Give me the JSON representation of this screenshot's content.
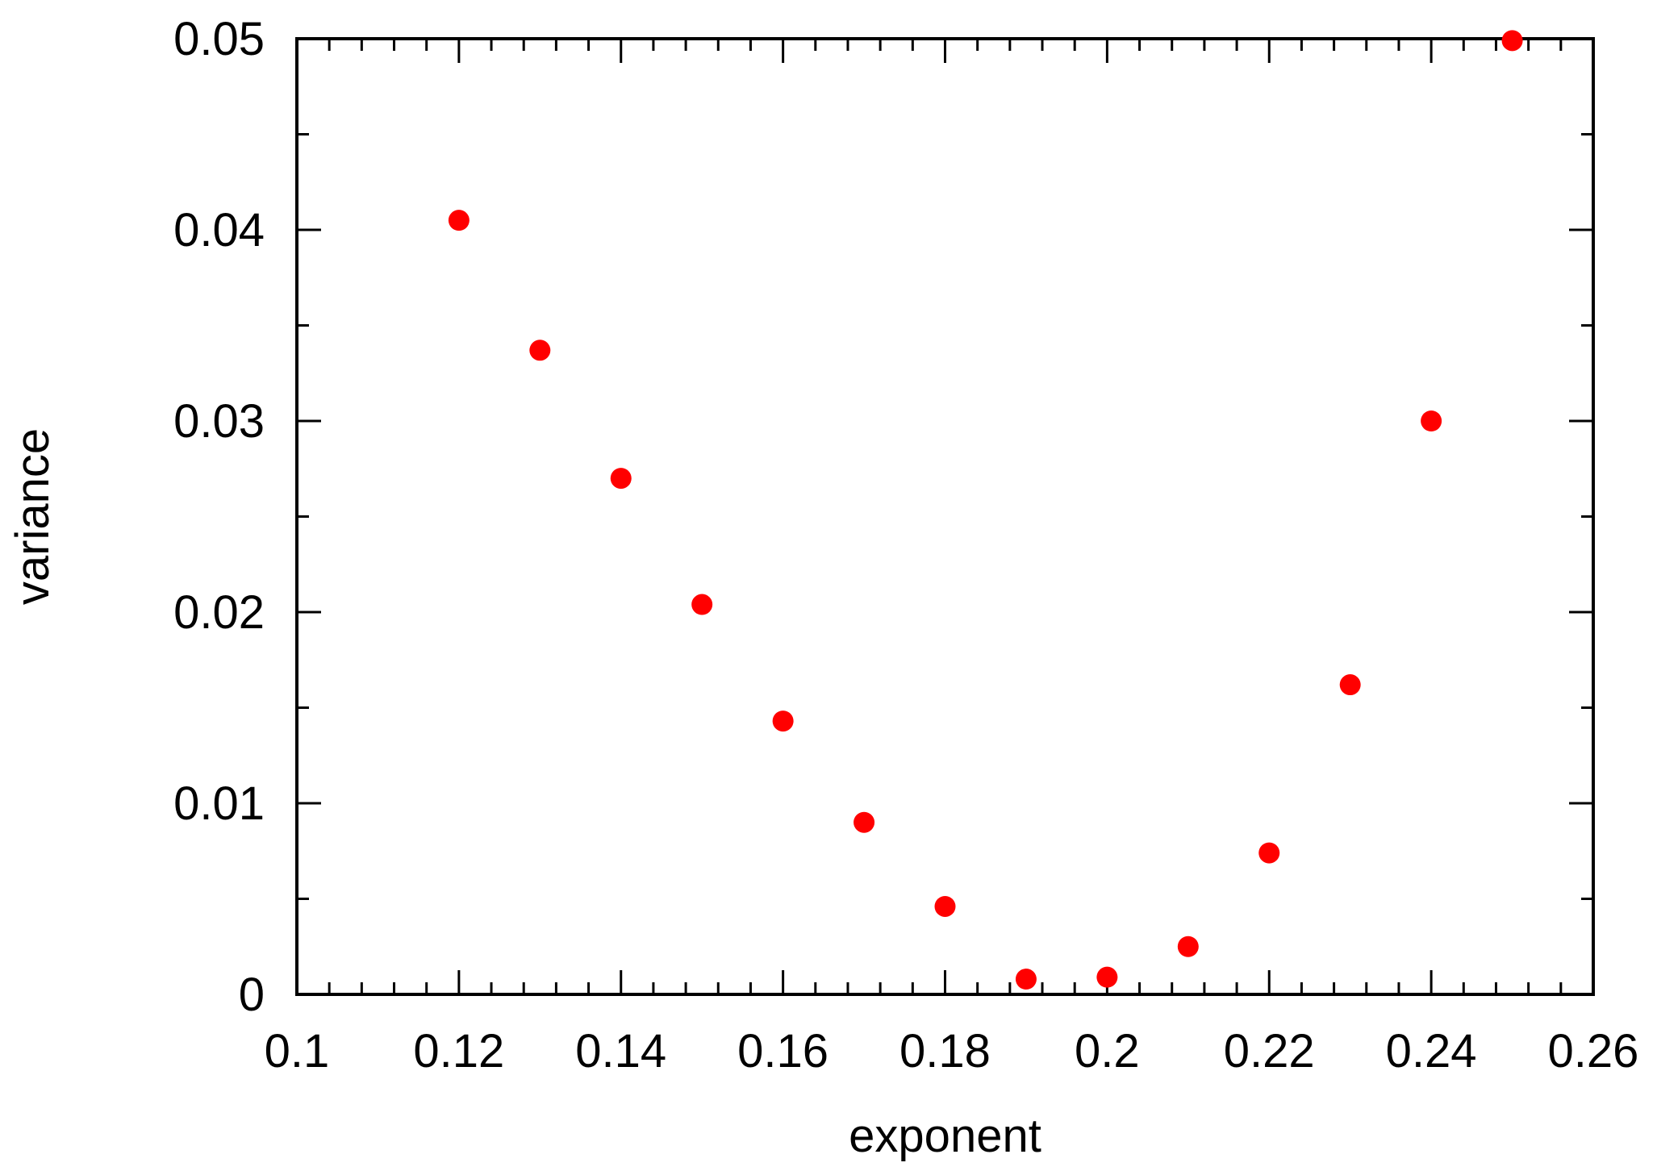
{
  "chart_data": {
    "type": "scatter",
    "title": "",
    "xlabel": "exponent",
    "ylabel": "variance",
    "xlim": [
      0.1,
      0.26
    ],
    "ylim": [
      0,
      0.05
    ],
    "x_ticks": [
      "0.1",
      "0.12",
      "0.14",
      "0.16",
      "0.18",
      "0.2",
      "0.22",
      "0.24",
      "0.26"
    ],
    "y_ticks": [
      "0",
      "0.01",
      "0.02",
      "0.03",
      "0.04",
      "0.05"
    ],
    "x_tick_values": [
      0.1,
      0.12,
      0.14,
      0.16,
      0.18,
      0.2,
      0.22,
      0.24,
      0.26
    ],
    "y_tick_values": [
      0,
      0.01,
      0.02,
      0.03,
      0.04,
      0.05
    ],
    "x_minor_step": 0.004,
    "y_minor_step": 0.005,
    "grid": false,
    "legend": "none",
    "marker_color": "#ff0000",
    "series": [
      {
        "x": [
          0.12,
          0.13,
          0.14,
          0.15,
          0.16,
          0.17,
          0.18,
          0.19,
          0.2,
          0.21,
          0.22,
          0.23,
          0.24,
          0.25
        ],
        "y": [
          0.0405,
          0.0337,
          0.027,
          0.0204,
          0.0143,
          0.009,
          0.0046,
          0.0008,
          0.0009,
          0.0025,
          0.0074,
          0.0162,
          0.03,
          0.0499
        ]
      }
    ]
  }
}
